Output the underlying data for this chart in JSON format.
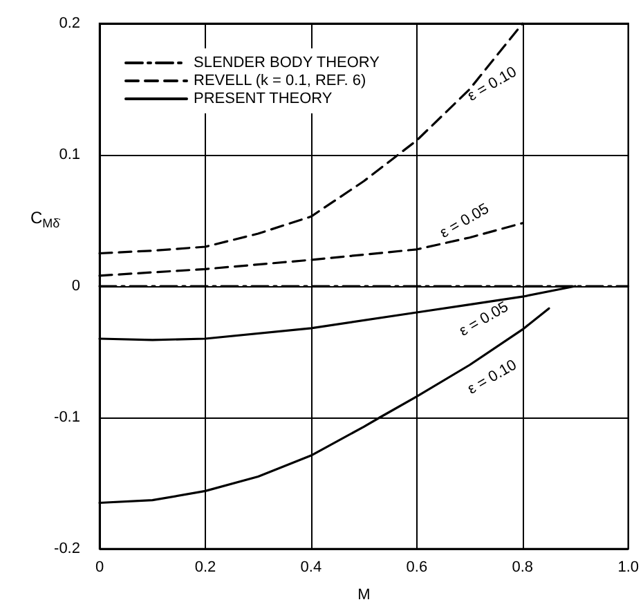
{
  "chart_data": {
    "type": "line",
    "xlabel": "M",
    "ylabel": "C$_{Mδ̇}$",
    "xlim": [
      0,
      1.0
    ],
    "ylim": [
      -0.2,
      0.2
    ],
    "xticks": [
      0,
      0.2,
      0.4,
      0.6,
      0.8,
      {
        "value": 1.0,
        "label": "1.0"
      }
    ],
    "yticks": [
      -0.2,
      -0.1,
      0,
      0.1,
      0.2
    ],
    "grid": true,
    "legend": "top left",
    "marker": "none",
    "series": [
      {
        "name": "SLENDER BODY THEORY",
        "color": "#000000",
        "line_style": "dashdot",
        "x": [
          0,
          1.0
        ],
        "values": [
          0,
          0
        ]
      },
      {
        "name": "REVELL (k = 0.1, REF. 6)",
        "color": "#000000",
        "line_style": "dashed",
        "x": [
          0,
          0.1,
          0.2,
          0.3,
          0.4,
          0.5,
          0.6,
          0.7,
          0.8
        ],
        "values": [
          0.025,
          0.027,
          0.03,
          0.04,
          0.053,
          0.08,
          0.111,
          0.15,
          0.2
        ]
      },
      {
        "color": "#000000",
        "line_style": "dashed",
        "x": [
          0,
          0.2,
          0.4,
          0.6,
          0.7,
          0.8
        ],
        "values": [
          0.008,
          0.013,
          0.02,
          0.028,
          0.037,
          0.048
        ]
      },
      {
        "name": "PRESENT THEORY",
        "color": "#000000",
        "line_style": "solid",
        "x": [
          0,
          0.1,
          0.2,
          0.4,
          0.6,
          0.7,
          0.8,
          0.9
        ],
        "values": [
          -0.04,
          -0.041,
          -0.04,
          -0.032,
          -0.02,
          -0.014,
          -0.008,
          0
        ]
      },
      {
        "color": "#000000",
        "line_style": "solid",
        "x": [
          0,
          0.1,
          0.2,
          0.3,
          0.4,
          0.5,
          0.53,
          0.6,
          0.7,
          0.8,
          0.85
        ],
        "values": [
          -0.165,
          -0.163,
          -0.156,
          -0.145,
          -0.129,
          -0.107,
          -0.1,
          -0.084,
          -0.06,
          -0.033,
          -0.017
        ]
      }
    ],
    "annotations": [
      "ε = 0.10",
      "ε = 0.05",
      "ε = 0.05",
      "ε = 0.10"
    ]
  }
}
